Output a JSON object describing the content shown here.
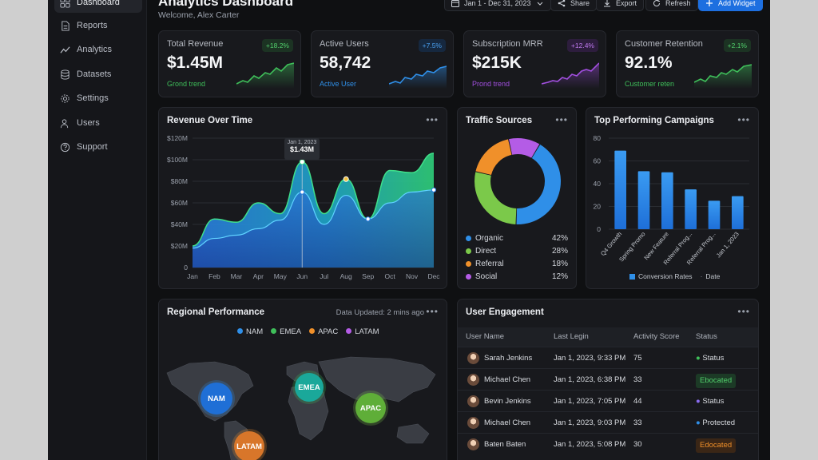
{
  "sidebar": {
    "items": [
      {
        "label": "Dashboard",
        "icon": "grid-icon"
      },
      {
        "label": "Reports",
        "icon": "document-icon"
      },
      {
        "label": "Analytics",
        "icon": "line-chart-icon"
      },
      {
        "label": "Datasets",
        "icon": "database-icon"
      },
      {
        "label": "Settings",
        "icon": "gear-icon"
      },
      {
        "label": "Users",
        "icon": "users-icon"
      },
      {
        "label": "Support",
        "icon": "help-icon"
      }
    ]
  },
  "header": {
    "title": "Analytics Dashboard",
    "subtitle": "Welcome, Alex Carter",
    "date_range": "Jan 1 - Dec 31, 2023",
    "share_label": "Share",
    "export_label": "Export",
    "refresh_label": "Refresh",
    "add_widget_label": "Add Widget"
  },
  "kpis": [
    {
      "label": "Total Revenue",
      "value": "$1.45M",
      "badge": "+18.2%",
      "trend_label": "Grond trend",
      "color": "#3fbf5a"
    },
    {
      "label": "Active Users",
      "value": "58,742",
      "badge": "+7.5%",
      "trend_label": "Active User",
      "color": "#2f8fe8"
    },
    {
      "label": "Subscription MRR",
      "value": "$215K",
      "badge": "+12.4%",
      "trend_label": "Prond trend",
      "color": "#a24fe0"
    },
    {
      "label": "Customer Retention",
      "value": "92.1%",
      "badge": "+2.1%",
      "trend_label": "Customer reten",
      "color": "#3fbf5a"
    }
  ],
  "revenue_chart": {
    "title": "Revenue Over Time",
    "tooltip_date": "Jan 1, 2023",
    "tooltip_value": "$1.43M",
    "y_ticks": [
      "$120M",
      "$100M",
      "$80M",
      "$60M",
      "$40M",
      "$20M",
      "0"
    ],
    "x_ticks": [
      "Jan",
      "Feb",
      "Mar",
      "Apr",
      "May",
      "Jun",
      "Jul",
      "Aug",
      "Sep",
      "Oct",
      "Nov",
      "Dec"
    ]
  },
  "traffic": {
    "title": "Traffic Sources",
    "items": [
      {
        "label": "Organic",
        "value": "42%",
        "color": "#2f8fe8"
      },
      {
        "label": "Direct",
        "value": "28%",
        "color": "#7bc94a"
      },
      {
        "label": "Referral",
        "value": "18%",
        "color": "#f0902a"
      },
      {
        "label": "Social",
        "value": "12%",
        "color": "#b45ce6"
      }
    ]
  },
  "campaigns": {
    "title": "Top Performing Campaigns",
    "legend_primary": "Conversion Rates",
    "legend_secondary": "Date"
  },
  "regional": {
    "title": "Regional Performance",
    "updated": "Data Updated: 2 mins ago",
    "legend": [
      {
        "label": "NAM",
        "color": "#2f8fe8"
      },
      {
        "label": "EMEA",
        "color": "#3fbf5a"
      },
      {
        "label": "APAC",
        "color": "#f0902a"
      },
      {
        "label": "LATAM",
        "color": "#b45ce6"
      }
    ],
    "bubbles": [
      "NAM",
      "EMEA",
      "APAC",
      "LATAM"
    ]
  },
  "engagement": {
    "title": "User Engagement",
    "columns": [
      "User Name",
      "Last Legin",
      "Activity Score",
      "Status"
    ],
    "rows": [
      {
        "name": "Sarah Jenkins",
        "last": "Jan 1, 2023, 9:33 PM",
        "score": "75",
        "status": "Status"
      },
      {
        "name": "Michael Chen",
        "last": "Jan 1, 2023, 6:38 PM",
        "score": "33",
        "status": "Ebocated"
      },
      {
        "name": "Bevin Jenkins",
        "last": "Jan 1, 2023, 7:05 PM",
        "score": "44",
        "status": "Status"
      },
      {
        "name": "Michael Chen",
        "last": "Jan 1, 2023, 9:03 PM",
        "score": "33",
        "status": "Protected"
      },
      {
        "name": "Baten Baten",
        "last": "Jan 1, 2023, 5:08 PM",
        "score": "30",
        "status": "Edocated"
      }
    ]
  },
  "chart_data": [
    {
      "type": "area",
      "title": "Revenue Over Time",
      "categories": [
        "Jan",
        "Feb",
        "Mar",
        "Apr",
        "May",
        "Jun",
        "Jul",
        "Aug",
        "Sep",
        "Oct",
        "Nov",
        "Dec"
      ],
      "series": [
        {
          "values": [
            20,
            45,
            42,
            60,
            50,
            98,
            50,
            82,
            45,
            90,
            88,
            106
          ]
        },
        {
          "values": [
            18,
            27,
            30,
            36,
            44,
            70,
            40,
            67,
            45,
            60,
            70,
            72
          ]
        }
      ],
      "ylim": [
        0,
        120
      ]
    },
    {
      "type": "pie",
      "title": "Traffic Sources",
      "categories": [
        "Organic",
        "Direct",
        "Referral",
        "Social"
      ],
      "values": [
        42,
        28,
        18,
        12
      ]
    },
    {
      "type": "bar",
      "title": "Top Performing Campaigns",
      "categories": [
        "Q4 Growth",
        "Spring Promo",
        "New Feature",
        "Referral Prog...",
        "Referral Prog...",
        "Jan 1, 2023"
      ],
      "values": [
        69,
        51,
        50,
        35,
        25,
        29
      ],
      "ylim": [
        0,
        80
      ]
    }
  ]
}
